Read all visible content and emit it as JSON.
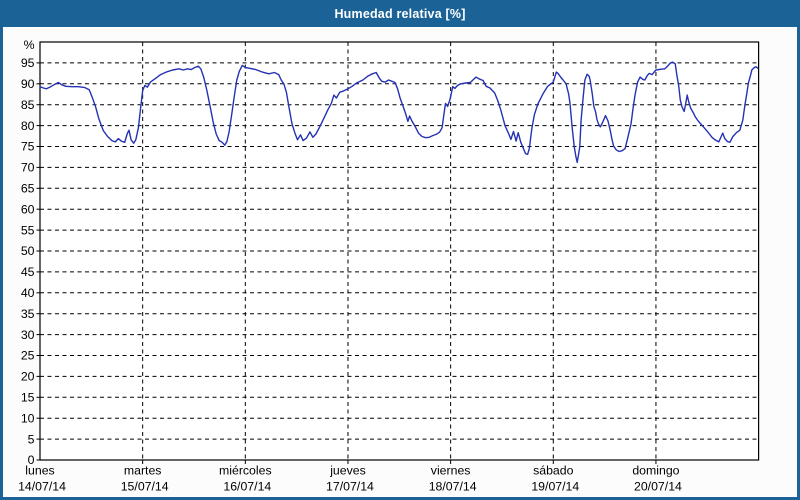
{
  "window": {
    "title": "Humedad relativa [%]"
  },
  "colors": {
    "titlebar_bg": "#1B6397",
    "frame_border": "#1B6397",
    "page_bg": "#FCFCFC",
    "plot_bg": "#FFFFFF",
    "grid": "#000000",
    "axis": "#000000",
    "tick_text": "#000000",
    "title_text": "#FFFFFF",
    "line": "#2432B4"
  },
  "chart_data": {
    "type": "line",
    "title": "Humedad relativa [%]",
    "ylabel": "%",
    "ylim": [
      0,
      100
    ],
    "yticks": [
      0,
      5,
      10,
      15,
      20,
      25,
      30,
      35,
      40,
      45,
      50,
      55,
      60,
      65,
      70,
      75,
      80,
      85,
      90,
      95
    ],
    "grid": "dashed",
    "legend": "none",
    "x_unit": "hours from Monday 00:00",
    "x_range": [
      0,
      168
    ],
    "x_days": [
      {
        "name": "lunes",
        "date": "14/07/14"
      },
      {
        "name": "martes",
        "date": "15/07/14"
      },
      {
        "name": "miércoles",
        "date": "16/07/14"
      },
      {
        "name": "jueves",
        "date": "17/07/14"
      },
      {
        "name": "viernes",
        "date": "18/07/14"
      },
      {
        "name": "sábado",
        "date": "19/07/14"
      },
      {
        "name": "domingo",
        "date": "20/07/14"
      }
    ],
    "series": [
      {
        "name": "Humedad relativa [%]",
        "color": "#2432B4",
        "points": [
          [
            0,
            89.3
          ],
          [
            0.8,
            89.0
          ],
          [
            1.5,
            88.8
          ],
          [
            2.5,
            89.3
          ],
          [
            3.5,
            89.9
          ],
          [
            4.3,
            90.3
          ],
          [
            5.0,
            89.8
          ],
          [
            6.0,
            89.4
          ],
          [
            7.5,
            89.3
          ],
          [
            9.0,
            89.3
          ],
          [
            10.5,
            89.1
          ],
          [
            11.5,
            88.6
          ],
          [
            12.2,
            86.8
          ],
          [
            13.0,
            84.5
          ],
          [
            13.8,
            81.5
          ],
          [
            14.8,
            78.8
          ],
          [
            15.8,
            77.4
          ],
          [
            16.8,
            76.4
          ],
          [
            17.6,
            76.1
          ],
          [
            18.3,
            76.9
          ],
          [
            19.0,
            76.3
          ],
          [
            19.8,
            76.0
          ],
          [
            20.4,
            78.1
          ],
          [
            20.8,
            78.9
          ],
          [
            21.3,
            76.6
          ],
          [
            21.9,
            75.8
          ],
          [
            22.4,
            76.6
          ],
          [
            23.0,
            79.5
          ],
          [
            23.5,
            84.0
          ],
          [
            24.0,
            88.4
          ],
          [
            24.5,
            89.6
          ],
          [
            25.1,
            89.2
          ],
          [
            25.8,
            90.4
          ],
          [
            27.0,
            91.3
          ],
          [
            28.2,
            92.2
          ],
          [
            29.5,
            92.8
          ],
          [
            31.0,
            93.3
          ],
          [
            32.5,
            93.6
          ],
          [
            33.5,
            93.3
          ],
          [
            34.5,
            93.6
          ],
          [
            35.3,
            93.4
          ],
          [
            36.2,
            93.9
          ],
          [
            37.0,
            94.2
          ],
          [
            37.6,
            93.6
          ],
          [
            38.3,
            91.5
          ],
          [
            39.0,
            88.5
          ],
          [
            39.8,
            84.5
          ],
          [
            40.5,
            80.8
          ],
          [
            41.2,
            78.0
          ],
          [
            41.9,
            76.4
          ],
          [
            42.6,
            76.0
          ],
          [
            43.2,
            75.3
          ],
          [
            43.7,
            76.2
          ],
          [
            44.2,
            78.5
          ],
          [
            44.8,
            82.5
          ],
          [
            45.4,
            86.9
          ],
          [
            46.0,
            90.9
          ],
          [
            46.6,
            93.0
          ],
          [
            47.3,
            94.4
          ],
          [
            48.0,
            93.9
          ],
          [
            49.0,
            93.7
          ],
          [
            50.5,
            93.4
          ],
          [
            52.0,
            92.8
          ],
          [
            53.5,
            92.4
          ],
          [
            54.8,
            92.7
          ],
          [
            55.8,
            92.2
          ],
          [
            56.4,
            90.9
          ],
          [
            57.0,
            90.0
          ],
          [
            57.6,
            88.0
          ],
          [
            58.2,
            84.5
          ],
          [
            58.9,
            80.5
          ],
          [
            59.6,
            78.2
          ],
          [
            60.2,
            76.6
          ],
          [
            60.9,
            77.8
          ],
          [
            61.5,
            76.4
          ],
          [
            62.3,
            77.0
          ],
          [
            63.1,
            78.5
          ],
          [
            63.8,
            77.2
          ],
          [
            64.5,
            78.0
          ],
          [
            65.4,
            79.7
          ],
          [
            66.4,
            81.8
          ],
          [
            67.3,
            83.8
          ],
          [
            68.1,
            85.3
          ],
          [
            68.7,
            87.3
          ],
          [
            69.3,
            86.6
          ],
          [
            70.1,
            88.0
          ],
          [
            71.0,
            88.3
          ],
          [
            72.0,
            88.8
          ],
          [
            73.0,
            89.4
          ],
          [
            74.0,
            90.2
          ],
          [
            75.5,
            90.9
          ],
          [
            76.6,
            91.8
          ],
          [
            77.5,
            92.3
          ],
          [
            78.6,
            92.7
          ],
          [
            79.3,
            91.4
          ],
          [
            79.9,
            90.6
          ],
          [
            80.7,
            90.4
          ],
          [
            81.5,
            90.9
          ],
          [
            82.3,
            90.6
          ],
          [
            83.0,
            90.3
          ],
          [
            83.6,
            88.8
          ],
          [
            84.2,
            86.5
          ],
          [
            84.9,
            84.6
          ],
          [
            85.5,
            82.8
          ],
          [
            86.0,
            81.0
          ],
          [
            86.4,
            82.3
          ],
          [
            86.9,
            81.2
          ],
          [
            87.7,
            79.8
          ],
          [
            88.5,
            78.2
          ],
          [
            89.3,
            77.4
          ],
          [
            90.2,
            77.1
          ],
          [
            91.0,
            77.2
          ],
          [
            91.8,
            77.6
          ],
          [
            92.6,
            77.9
          ],
          [
            93.4,
            78.4
          ],
          [
            94.0,
            79.5
          ],
          [
            94.4,
            82.5
          ],
          [
            94.8,
            85.3
          ],
          [
            95.3,
            84.6
          ],
          [
            95.8,
            86.1
          ],
          [
            96.5,
            89.3
          ],
          [
            97.0,
            88.9
          ],
          [
            97.6,
            89.6
          ],
          [
            98.4,
            90.0
          ],
          [
            99.5,
            90.2
          ],
          [
            100.6,
            90.3
          ],
          [
            101.3,
            91.0
          ],
          [
            101.9,
            91.6
          ],
          [
            102.6,
            91.2
          ],
          [
            103.6,
            90.8
          ],
          [
            104.3,
            89.4
          ],
          [
            105.2,
            89.0
          ],
          [
            106.3,
            87.8
          ],
          [
            107.0,
            86.0
          ],
          [
            107.7,
            83.8
          ],
          [
            108.7,
            80.0
          ],
          [
            109.6,
            78.0
          ],
          [
            110.1,
            76.7
          ],
          [
            110.7,
            78.6
          ],
          [
            111.3,
            76.3
          ],
          [
            111.8,
            78.3
          ],
          [
            112.4,
            76.0
          ],
          [
            112.9,
            74.8
          ],
          [
            113.5,
            73.3
          ],
          [
            114.0,
            73.1
          ],
          [
            114.4,
            74.5
          ],
          [
            115.0,
            79.4
          ],
          [
            115.6,
            82.7
          ],
          [
            116.4,
            85.2
          ],
          [
            117.6,
            87.6
          ],
          [
            118.7,
            89.4
          ],
          [
            120.0,
            90.4
          ],
          [
            120.7,
            92.8
          ],
          [
            121.1,
            92.5
          ],
          [
            121.8,
            91.5
          ],
          [
            122.3,
            90.9
          ],
          [
            123.0,
            90.0
          ],
          [
            123.6,
            87.5
          ],
          [
            123.9,
            85.3
          ],
          [
            124.4,
            79.7
          ],
          [
            124.9,
            75.0
          ],
          [
            125.3,
            72.5
          ],
          [
            125.6,
            71.2
          ],
          [
            125.9,
            73.0
          ],
          [
            126.2,
            75.0
          ],
          [
            126.5,
            81.3
          ],
          [
            127.0,
            86.9
          ],
          [
            127.4,
            90.9
          ],
          [
            127.9,
            92.3
          ],
          [
            128.4,
            91.8
          ],
          [
            128.6,
            90.9
          ],
          [
            129.1,
            87.7
          ],
          [
            129.5,
            84.5
          ],
          [
            129.9,
            83.3
          ],
          [
            130.2,
            81.5
          ],
          [
            130.6,
            80.3
          ],
          [
            131.0,
            79.7
          ],
          [
            131.6,
            80.9
          ],
          [
            132.2,
            82.4
          ],
          [
            132.8,
            81.1
          ],
          [
            133.3,
            78.9
          ],
          [
            133.7,
            76.8
          ],
          [
            134.1,
            75.1
          ],
          [
            134.7,
            74.2
          ],
          [
            135.4,
            73.8
          ],
          [
            136.1,
            74.0
          ],
          [
            136.8,
            74.5
          ],
          [
            137.4,
            77.0
          ],
          [
            138.2,
            80.5
          ],
          [
            138.6,
            83.7
          ],
          [
            139.1,
            87.3
          ],
          [
            139.7,
            90.4
          ],
          [
            140.3,
            91.6
          ],
          [
            141.0,
            91.0
          ],
          [
            141.4,
            90.9
          ],
          [
            142.0,
            92.0
          ],
          [
            142.4,
            92.5
          ],
          [
            143.1,
            92.2
          ],
          [
            144.0,
            93.3
          ],
          [
            145.2,
            93.5
          ],
          [
            146.1,
            93.6
          ],
          [
            146.8,
            94.3
          ],
          [
            147.4,
            95.0
          ],
          [
            147.9,
            95.2
          ],
          [
            148.5,
            94.8
          ],
          [
            148.9,
            92.0
          ],
          [
            149.3,
            89.7
          ],
          [
            149.7,
            86.1
          ],
          [
            150.1,
            84.5
          ],
          [
            150.6,
            83.4
          ],
          [
            150.9,
            85.0
          ],
          [
            151.3,
            87.3
          ],
          [
            151.6,
            85.9
          ],
          [
            152.1,
            84.2
          ],
          [
            152.7,
            83.1
          ],
          [
            153.2,
            82.1
          ],
          [
            153.8,
            81.2
          ],
          [
            154.4,
            80.5
          ],
          [
            155.2,
            79.6
          ],
          [
            156.2,
            78.4
          ],
          [
            157.1,
            77.2
          ],
          [
            157.8,
            76.6
          ],
          [
            158.7,
            76.1
          ],
          [
            159.6,
            78.2
          ],
          [
            160.1,
            76.9
          ],
          [
            160.7,
            76.2
          ],
          [
            161.3,
            76.0
          ],
          [
            162.0,
            77.4
          ],
          [
            162.8,
            78.3
          ],
          [
            163.6,
            78.9
          ],
          [
            164.3,
            81.3
          ],
          [
            164.8,
            84.9
          ],
          [
            165.3,
            88.1
          ],
          [
            165.6,
            90.1
          ],
          [
            166.1,
            92.0
          ],
          [
            166.4,
            93.3
          ],
          [
            167.0,
            93.9
          ],
          [
            167.4,
            94.1
          ],
          [
            167.8,
            93.7
          ]
        ]
      }
    ]
  }
}
